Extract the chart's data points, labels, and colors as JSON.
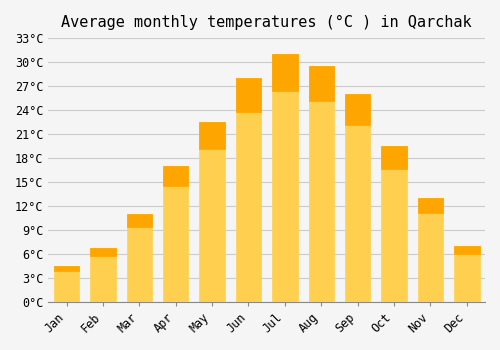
{
  "title": "Average monthly temperatures (°C ) in Qarchak",
  "months": [
    "Jan",
    "Feb",
    "Mar",
    "Apr",
    "May",
    "Jun",
    "Jul",
    "Aug",
    "Sep",
    "Oct",
    "Nov",
    "Dec"
  ],
  "values": [
    4.5,
    6.7,
    11.0,
    17.0,
    22.5,
    28.0,
    31.0,
    29.5,
    26.0,
    19.5,
    13.0,
    7.0
  ],
  "bar_color_top": "#FFA500",
  "bar_color_bottom": "#FFD050",
  "ylim": [
    0,
    33
  ],
  "yticks": [
    0,
    3,
    6,
    9,
    12,
    15,
    18,
    21,
    24,
    27,
    30,
    33
  ],
  "ytick_labels": [
    "0°C",
    "3°C",
    "6°C",
    "9°C",
    "12°C",
    "15°C",
    "18°C",
    "21°C",
    "24°C",
    "27°C",
    "30°C",
    "33°C"
  ],
  "grid_color": "#cccccc",
  "bg_color": "#f5f5f5",
  "title_fontsize": 11,
  "axis_fontsize": 8.5,
  "bar_edge_color": "#e8940a"
}
